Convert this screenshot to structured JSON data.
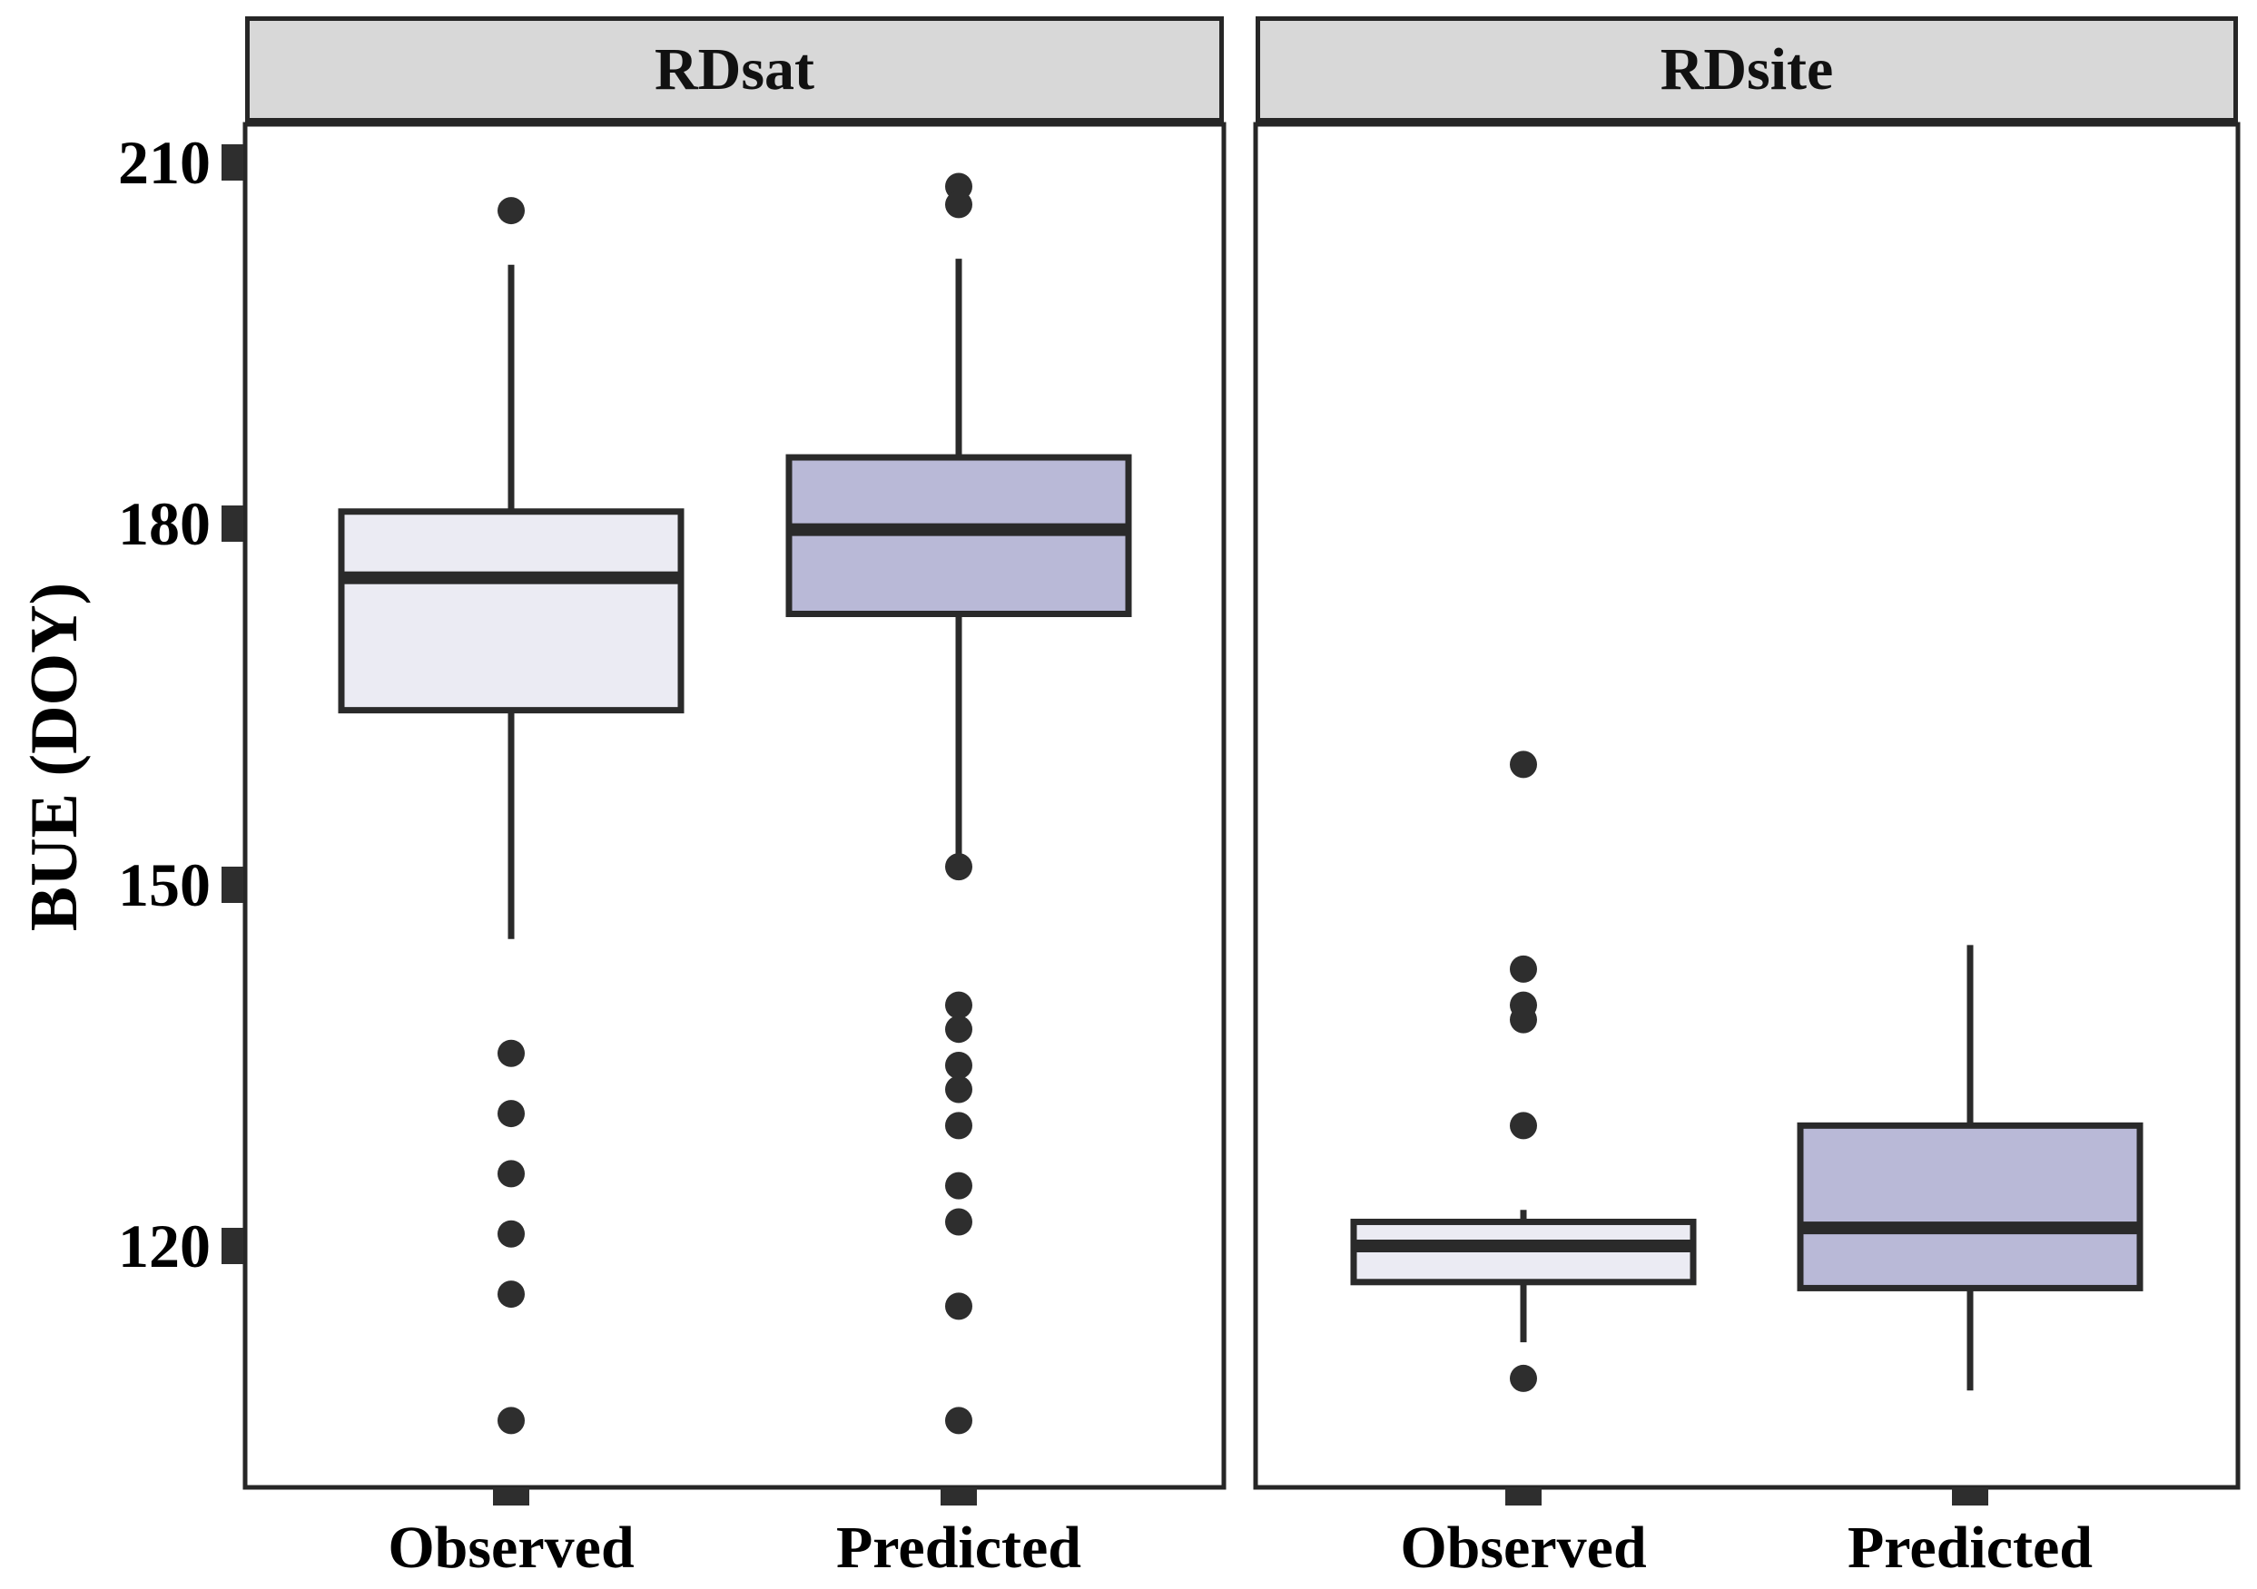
{
  "figure_background": "#ffffff",
  "colors": {
    "panel_stroke": "#262626",
    "box_stroke": "#2a2a2a",
    "header_fill": "#d8d8d8",
    "observed_fill": "#ebebf3",
    "predicted_fill": "#b9b9d7",
    "outlier_dot": "#2e2e2e",
    "tick_mark": "#2e2e2e",
    "text": "#000000"
  },
  "chart_data": {
    "type": "boxplot",
    "ylabel": "BUE (DOY)",
    "xlabel": "",
    "ylim": [
      100,
      213.5
    ],
    "y_ticks": [
      210,
      180,
      150,
      120
    ],
    "y_ticks_display": [
      "210",
      "180",
      "150",
      "120"
    ],
    "grid": false,
    "legend": "none",
    "facets": [
      {
        "label": "RDsat",
        "boxes": [
          {
            "category": "Observed",
            "fill": "#ebebf3",
            "whisker_low": 145.5,
            "q1": 164.5,
            "median": 175.5,
            "q3": 181,
            "whisker_high": 201.5,
            "outliers": [
              206,
              136,
              131,
              126,
              121,
              116,
              105.5
            ]
          },
          {
            "category": "Predicted",
            "fill": "#b9b9d7",
            "whisker_low": 152.5,
            "q1": 172.5,
            "median": 179.5,
            "q3": 185.5,
            "whisker_high": 202,
            "outliers": [
              208,
              206.5,
              151.5,
              140,
              138,
              135,
              133,
              130,
              125,
              122,
              115,
              105.5
            ]
          }
        ]
      },
      {
        "label": "RDsite",
        "boxes": [
          {
            "category": "Observed",
            "fill": "#ebebf3",
            "whisker_low": 112,
            "q1": 117,
            "median": 120,
            "q3": 122,
            "whisker_high": 123,
            "outliers": [
              160,
              143,
              140,
              138.8,
              130,
              109
            ]
          },
          {
            "category": "Predicted",
            "fill": "#b9b9d7",
            "whisker_low": 108,
            "q1": 116.5,
            "median": 121.5,
            "q3": 130,
            "whisker_high": 145,
            "outliers": []
          }
        ]
      }
    ]
  }
}
